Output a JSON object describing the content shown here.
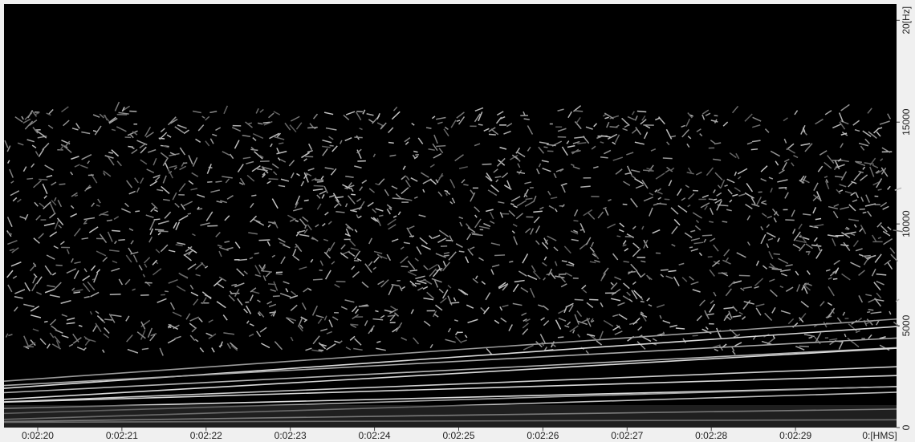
{
  "chart_data": {
    "type": "spectrogram",
    "xlabel": "0:[HMS]",
    "xlim": [
      139.6,
      150.2
    ],
    "xticks": [
      {
        "value": 140,
        "label": "0:02:20"
      },
      {
        "value": 141,
        "label": "0:02:21"
      },
      {
        "value": 142,
        "label": "0:02:22"
      },
      {
        "value": 143,
        "label": "0:02:23"
      },
      {
        "value": 144,
        "label": "0:02:24"
      },
      {
        "value": 145,
        "label": "0:02:25"
      },
      {
        "value": 146,
        "label": "0:02:26"
      },
      {
        "value": 147,
        "label": "0:02:27"
      },
      {
        "value": 148,
        "label": "0:02:28"
      },
      {
        "value": 149,
        "label": "0:02:29"
      }
    ],
    "ylim": [
      0,
      20800
    ],
    "yticks": [
      0,
      5000,
      10000,
      15000,
      {
        "value": 20000,
        "label": "20[Hz]"
      }
    ]
  }
}
